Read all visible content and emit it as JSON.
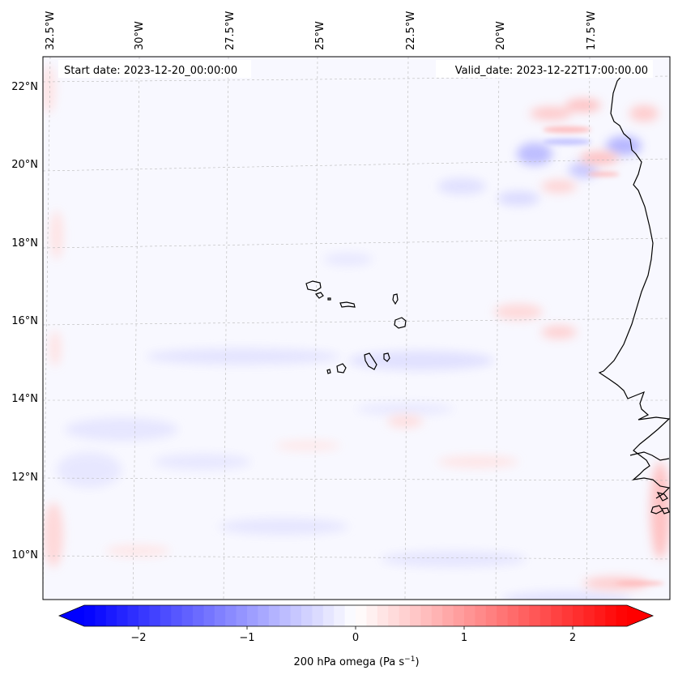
{
  "map": {
    "start_date": "Start date: 2023-12-20_00:00:00",
    "valid_date": "Valid_date: 2023-12-22T17:00:00.00",
    "lon_labels": [
      "32.5°W",
      "30°W",
      "27.5°W",
      "25°W",
      "22.5°W",
      "20°W",
      "17.5°W"
    ],
    "lat_labels": [
      "22°N",
      "20°N",
      "18°N",
      "16°N",
      "14°N",
      "12°N",
      "10°N"
    ]
  },
  "colorbar": {
    "label": "200 hPa omega (Pa s",
    "label_exponent": "−1",
    "label_suffix": ")",
    "ticks": [
      "−2",
      "−1",
      "0",
      "1",
      "2"
    ],
    "tick_values": [
      -2,
      -1,
      0,
      1,
      2
    ],
    "range": [
      -2.5,
      2.5
    ],
    "colormap": "bwr",
    "min_color": "#0000ff",
    "mid_color": "#ffffff",
    "max_color": "#ff0000"
  },
  "colors": {
    "background": "#f8f8ff",
    "coast": "#000000",
    "grid": "#b8b8b8"
  }
}
